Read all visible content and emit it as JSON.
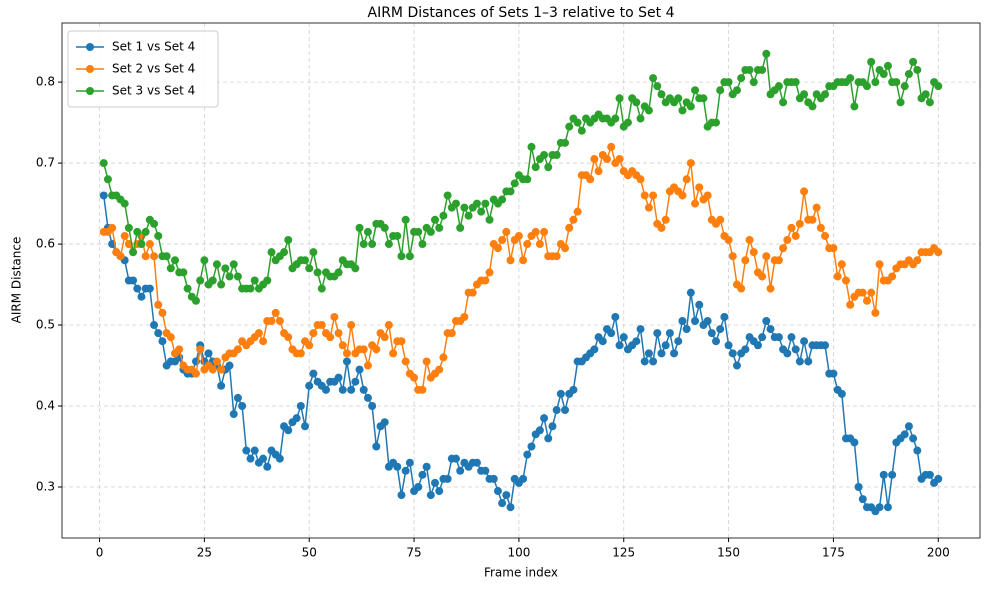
{
  "chart_data": {
    "type": "line",
    "title": "AIRM Distances of Sets 1–3 relative to Set 4",
    "x_label": "Frame index",
    "y_label": "AIRM Distance",
    "x": [
      1,
      2,
      3,
      4,
      5,
      6,
      7,
      8,
      9,
      10,
      11,
      12,
      13,
      14,
      15,
      16,
      17,
      18,
      19,
      20,
      21,
      22,
      23,
      24,
      25,
      26,
      27,
      28,
      29,
      30,
      31,
      32,
      33,
      34,
      35,
      36,
      37,
      38,
      39,
      40,
      41,
      42,
      43,
      44,
      45,
      46,
      47,
      48,
      49,
      50,
      51,
      52,
      53,
      54,
      55,
      56,
      57,
      58,
      59,
      60,
      61,
      62,
      63,
      64,
      65,
      66,
      67,
      68,
      69,
      70,
      71,
      72,
      73,
      74,
      75,
      76,
      77,
      78,
      79,
      80,
      81,
      82,
      83,
      84,
      85,
      86,
      87,
      88,
      89,
      90,
      91,
      92,
      93,
      94,
      95,
      96,
      97,
      98,
      99,
      100,
      101,
      102,
      103,
      104,
      105,
      106,
      107,
      108,
      109,
      110,
      111,
      112,
      113,
      114,
      115,
      116,
      117,
      118,
      119,
      120,
      121,
      122,
      123,
      124,
      125,
      126,
      127,
      128,
      129,
      130,
      131,
      132,
      133,
      134,
      135,
      136,
      137,
      138,
      139,
      140,
      141,
      142,
      143,
      144,
      145,
      146,
      147,
      148,
      149,
      150,
      151,
      152,
      153,
      154,
      155,
      156,
      157,
      158,
      159,
      160,
      161,
      162,
      163,
      164,
      165,
      166,
      167,
      168,
      169,
      170,
      171,
      172,
      173,
      174,
      175,
      176,
      177,
      178,
      179,
      180,
      181,
      182,
      183,
      184,
      185,
      186,
      187,
      188,
      189,
      190,
      191,
      192,
      193,
      194,
      195,
      196,
      197,
      198,
      199,
      200
    ],
    "series": [
      {
        "name": "Set 1 vs Set 4",
        "color": "#1f77b4",
        "values": [
          0.66,
          0.62,
          0.6,
          0.59,
          0.585,
          0.58,
          0.555,
          0.555,
          0.545,
          0.535,
          0.545,
          0.545,
          0.5,
          0.49,
          0.48,
          0.45,
          0.455,
          0.455,
          0.46,
          0.445,
          0.44,
          0.44,
          0.455,
          0.475,
          0.455,
          0.465,
          0.455,
          0.45,
          0.425,
          0.445,
          0.45,
          0.39,
          0.41,
          0.4,
          0.345,
          0.335,
          0.345,
          0.33,
          0.335,
          0.325,
          0.345,
          0.34,
          0.335,
          0.375,
          0.37,
          0.38,
          0.385,
          0.4,
          0.375,
          0.425,
          0.44,
          0.43,
          0.425,
          0.42,
          0.43,
          0.43,
          0.435,
          0.42,
          0.455,
          0.42,
          0.43,
          0.445,
          0.42,
          0.41,
          0.4,
          0.35,
          0.375,
          0.38,
          0.325,
          0.33,
          0.325,
          0.29,
          0.32,
          0.33,
          0.295,
          0.3,
          0.315,
          0.325,
          0.29,
          0.305,
          0.295,
          0.31,
          0.31,
          0.335,
          0.335,
          0.32,
          0.33,
          0.325,
          0.33,
          0.33,
          0.32,
          0.32,
          0.31,
          0.31,
          0.295,
          0.28,
          0.29,
          0.275,
          0.31,
          0.305,
          0.31,
          0.34,
          0.35,
          0.365,
          0.37,
          0.385,
          0.36,
          0.375,
          0.395,
          0.415,
          0.395,
          0.415,
          0.42,
          0.455,
          0.455,
          0.46,
          0.465,
          0.47,
          0.485,
          0.48,
          0.495,
          0.49,
          0.51,
          0.475,
          0.485,
          0.47,
          0.475,
          0.48,
          0.495,
          0.455,
          0.465,
          0.455,
          0.49,
          0.465,
          0.475,
          0.49,
          0.465,
          0.48,
          0.505,
          0.495,
          0.54,
          0.505,
          0.525,
          0.5,
          0.505,
          0.49,
          0.48,
          0.495,
          0.51,
          0.475,
          0.465,
          0.45,
          0.465,
          0.47,
          0.485,
          0.48,
          0.475,
          0.485,
          0.505,
          0.495,
          0.485,
          0.485,
          0.47,
          0.465,
          0.485,
          0.47,
          0.455,
          0.48,
          0.455,
          0.475,
          0.475,
          0.475,
          0.475,
          0.44,
          0.44,
          0.42,
          0.415,
          0.36,
          0.36,
          0.355,
          0.3,
          0.285,
          0.275,
          0.275,
          0.27,
          0.275,
          0.315,
          0.275,
          0.315,
          0.355,
          0.36,
          0.365,
          0.375,
          0.36,
          0.345,
          0.31,
          0.315,
          0.315,
          0.305,
          0.31
        ]
      },
      {
        "name": "Set 2 vs Set 4",
        "color": "#ff7f0e",
        "values": [
          0.615,
          0.615,
          0.62,
          0.59,
          0.585,
          0.61,
          0.6,
          0.59,
          0.6,
          0.61,
          0.585,
          0.6,
          0.585,
          0.525,
          0.515,
          0.49,
          0.485,
          0.465,
          0.47,
          0.45,
          0.445,
          0.445,
          0.44,
          0.47,
          0.445,
          0.45,
          0.445,
          0.455,
          0.445,
          0.46,
          0.465,
          0.465,
          0.47,
          0.48,
          0.475,
          0.48,
          0.485,
          0.49,
          0.48,
          0.505,
          0.505,
          0.515,
          0.505,
          0.49,
          0.485,
          0.47,
          0.465,
          0.465,
          0.48,
          0.475,
          0.49,
          0.5,
          0.5,
          0.49,
          0.485,
          0.51,
          0.49,
          0.475,
          0.465,
          0.5,
          0.465,
          0.47,
          0.47,
          0.45,
          0.475,
          0.47,
          0.49,
          0.485,
          0.5,
          0.465,
          0.48,
          0.48,
          0.455,
          0.44,
          0.435,
          0.42,
          0.42,
          0.455,
          0.435,
          0.44,
          0.445,
          0.46,
          0.49,
          0.49,
          0.505,
          0.505,
          0.51,
          0.54,
          0.54,
          0.55,
          0.555,
          0.555,
          0.565,
          0.6,
          0.595,
          0.605,
          0.615,
          0.58,
          0.605,
          0.61,
          0.58,
          0.6,
          0.61,
          0.615,
          0.6,
          0.615,
          0.585,
          0.585,
          0.585,
          0.6,
          0.595,
          0.62,
          0.63,
          0.64,
          0.685,
          0.685,
          0.68,
          0.705,
          0.69,
          0.71,
          0.705,
          0.72,
          0.7,
          0.705,
          0.69,
          0.685,
          0.69,
          0.685,
          0.68,
          0.66,
          0.645,
          0.66,
          0.625,
          0.62,
          0.63,
          0.665,
          0.67,
          0.665,
          0.66,
          0.68,
          0.7,
          0.65,
          0.67,
          0.655,
          0.66,
          0.63,
          0.625,
          0.63,
          0.61,
          0.605,
          0.585,
          0.55,
          0.545,
          0.58,
          0.605,
          0.59,
          0.565,
          0.56,
          0.585,
          0.545,
          0.58,
          0.58,
          0.595,
          0.605,
          0.62,
          0.61,
          0.625,
          0.665,
          0.63,
          0.63,
          0.645,
          0.62,
          0.61,
          0.595,
          0.595,
          0.56,
          0.575,
          0.555,
          0.525,
          0.535,
          0.54,
          0.54,
          0.53,
          0.54,
          0.515,
          0.575,
          0.555,
          0.555,
          0.56,
          0.57,
          0.575,
          0.575,
          0.58,
          0.575,
          0.58,
          0.59,
          0.59,
          0.59,
          0.595,
          0.59
        ]
      },
      {
        "name": "Set 3 vs Set 4",
        "color": "#2ca02c",
        "values": [
          0.7,
          0.68,
          0.66,
          0.66,
          0.655,
          0.65,
          0.62,
          0.59,
          0.615,
          0.6,
          0.615,
          0.63,
          0.625,
          0.61,
          0.585,
          0.585,
          0.57,
          0.58,
          0.565,
          0.565,
          0.545,
          0.535,
          0.53,
          0.555,
          0.58,
          0.55,
          0.555,
          0.575,
          0.55,
          0.57,
          0.56,
          0.575,
          0.56,
          0.545,
          0.545,
          0.545,
          0.555,
          0.545,
          0.55,
          0.555,
          0.59,
          0.58,
          0.585,
          0.59,
          0.605,
          0.57,
          0.575,
          0.58,
          0.58,
          0.57,
          0.59,
          0.565,
          0.545,
          0.565,
          0.56,
          0.56,
          0.565,
          0.58,
          0.575,
          0.575,
          0.57,
          0.62,
          0.6,
          0.615,
          0.6,
          0.625,
          0.625,
          0.62,
          0.6,
          0.61,
          0.61,
          0.585,
          0.63,
          0.585,
          0.615,
          0.615,
          0.6,
          0.62,
          0.615,
          0.63,
          0.62,
          0.635,
          0.66,
          0.645,
          0.65,
          0.62,
          0.645,
          0.635,
          0.645,
          0.65,
          0.64,
          0.65,
          0.63,
          0.655,
          0.65,
          0.655,
          0.665,
          0.665,
          0.675,
          0.685,
          0.68,
          0.68,
          0.72,
          0.695,
          0.705,
          0.71,
          0.695,
          0.71,
          0.71,
          0.725,
          0.725,
          0.745,
          0.755,
          0.75,
          0.74,
          0.755,
          0.75,
          0.755,
          0.76,
          0.755,
          0.755,
          0.75,
          0.755,
          0.78,
          0.745,
          0.75,
          0.78,
          0.775,
          0.755,
          0.77,
          0.765,
          0.805,
          0.795,
          0.785,
          0.775,
          0.78,
          0.775,
          0.78,
          0.765,
          0.775,
          0.77,
          0.79,
          0.78,
          0.78,
          0.745,
          0.75,
          0.75,
          0.79,
          0.8,
          0.8,
          0.785,
          0.79,
          0.805,
          0.815,
          0.815,
          0.8,
          0.815,
          0.815,
          0.835,
          0.785,
          0.79,
          0.795,
          0.775,
          0.8,
          0.8,
          0.8,
          0.78,
          0.785,
          0.775,
          0.77,
          0.785,
          0.78,
          0.785,
          0.795,
          0.795,
          0.8,
          0.8,
          0.8,
          0.805,
          0.77,
          0.8,
          0.8,
          0.795,
          0.825,
          0.8,
          0.815,
          0.81,
          0.82,
          0.8,
          0.8,
          0.775,
          0.795,
          0.81,
          0.825,
          0.815,
          0.78,
          0.785,
          0.775,
          0.8,
          0.795
        ]
      }
    ],
    "xlim": [
      -8.95,
      209.95
    ],
    "xticks": [
      0,
      25,
      50,
      75,
      100,
      125,
      150,
      175,
      200
    ],
    "ylim": [
      0.237,
      0.873
    ],
    "yticks": [
      0.3,
      0.4,
      0.5,
      0.6,
      0.7,
      0.8
    ],
    "grid": true,
    "legend": "upper left"
  }
}
